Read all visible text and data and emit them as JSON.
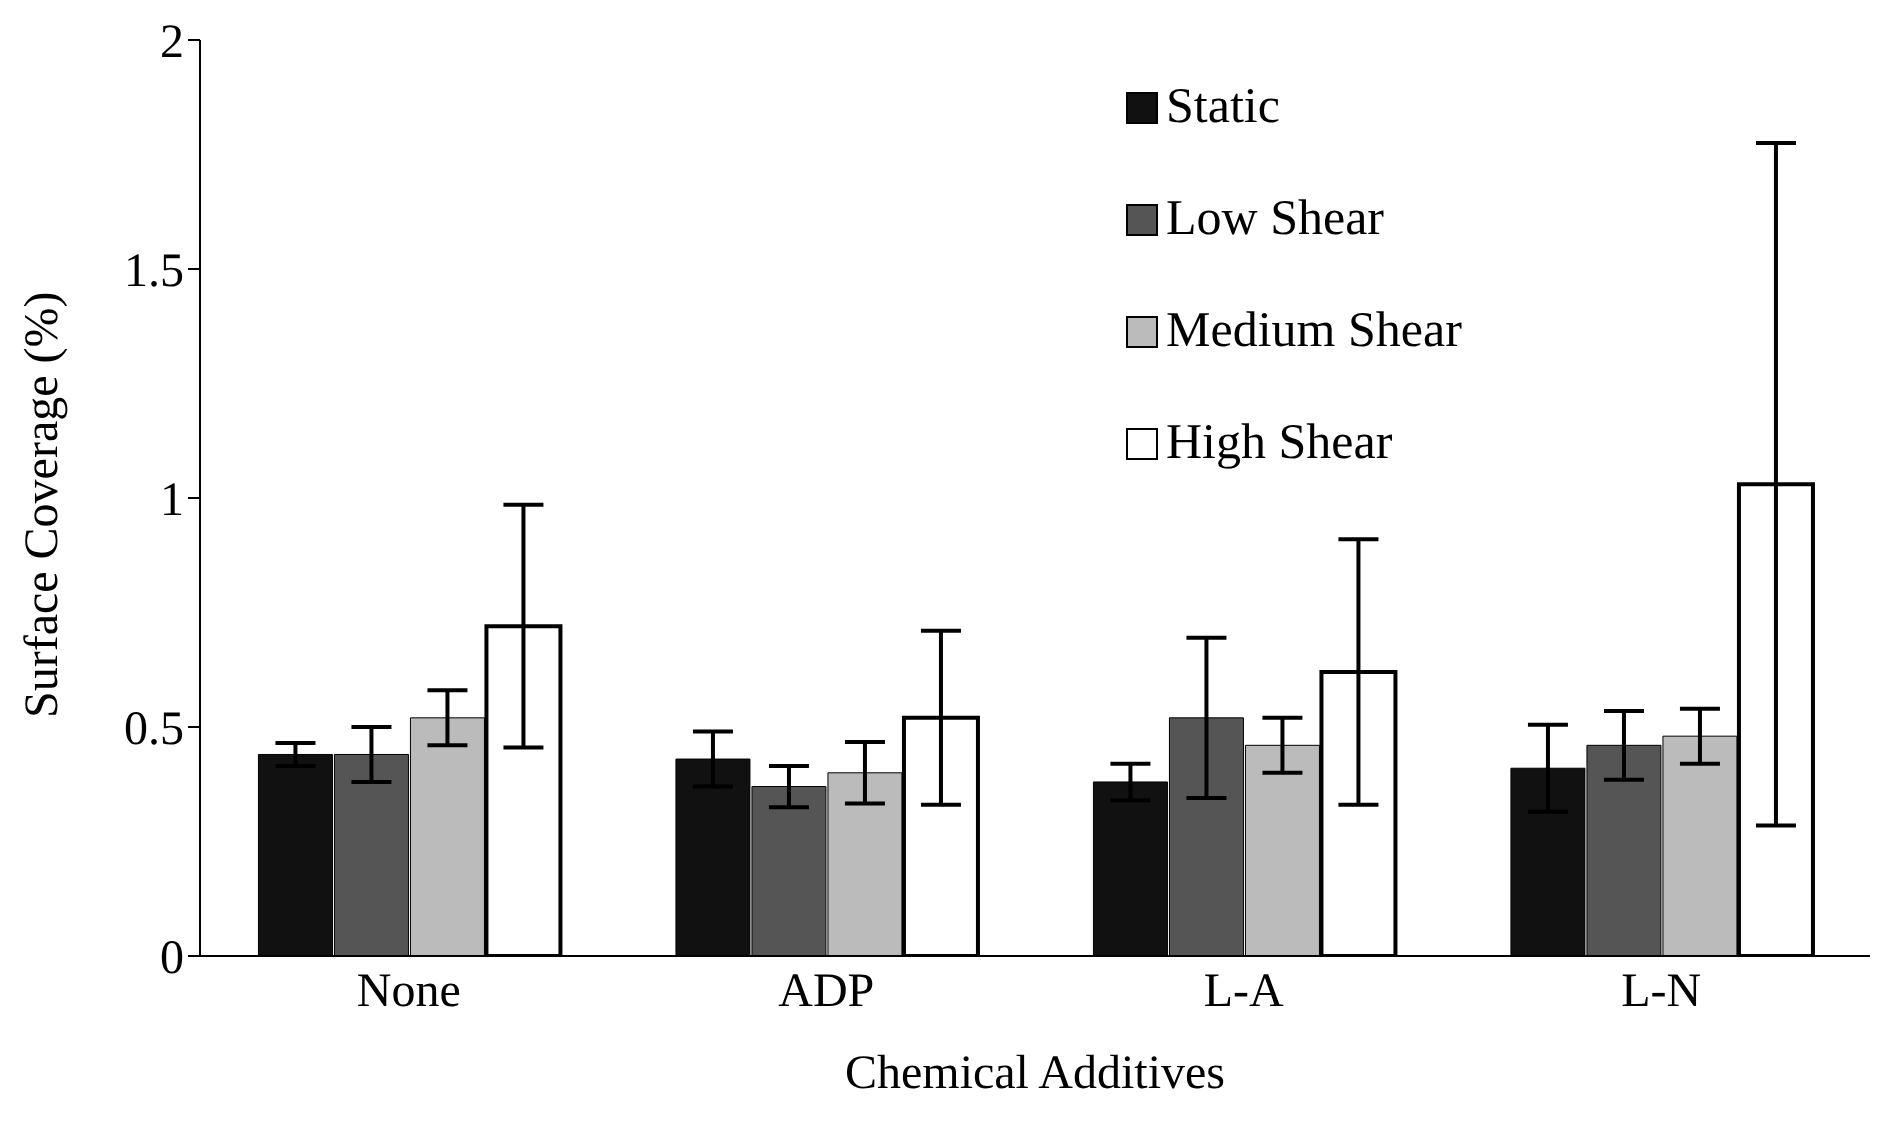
{
  "chart_data": {
    "type": "bar",
    "xlabel": "Chemical Additives",
    "ylabel": "Surface Coverage (%)",
    "categories": [
      "None",
      "ADP",
      "L-A",
      "L-N"
    ],
    "series": [
      {
        "name": "Static",
        "color": "#111111",
        "values": [
          0.44,
          0.43,
          0.38,
          0.41
        ],
        "errors": [
          0.025,
          0.06,
          0.04,
          0.095
        ]
      },
      {
        "name": "Low Shear",
        "color": "#555555",
        "values": [
          0.44,
          0.37,
          0.52,
          0.46
        ],
        "errors": [
          0.06,
          0.045,
          0.175,
          0.075
        ]
      },
      {
        "name": "Medium Shear",
        "color": "#bbbbbb",
        "values": [
          0.52,
          0.4,
          0.46,
          0.48
        ],
        "errors": [
          0.06,
          0.067,
          0.06,
          0.06
        ]
      },
      {
        "name": "High Shear",
        "color": "#ffffff",
        "values": [
          0.72,
          0.52,
          0.62,
          1.03
        ],
        "errors": [
          0.265,
          0.19,
          0.29,
          0.745
        ]
      }
    ],
    "ylim": [
      0,
      2
    ],
    "yticks": [
      0,
      0.5,
      1,
      1.5,
      2
    ],
    "grid": false,
    "legend": "top right"
  }
}
